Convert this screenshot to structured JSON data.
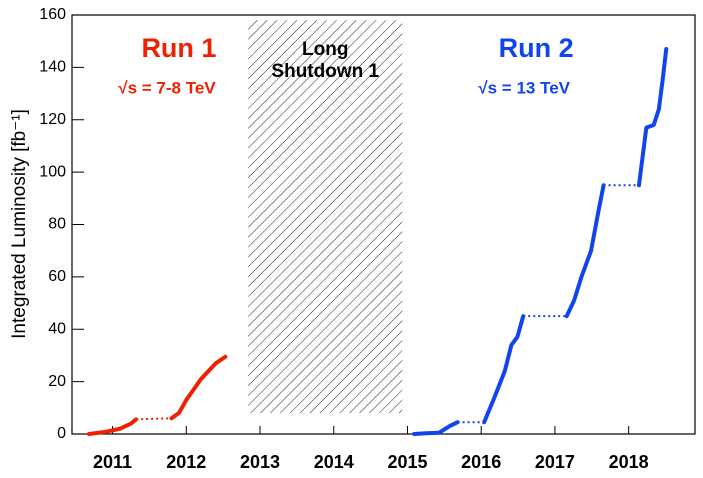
{
  "chart_data": {
    "type": "line",
    "y_label": "Integrated Luminosity [fb⁻¹]",
    "xlim": [
      2010.95,
      2019.4
    ],
    "ylim": [
      0,
      160
    ],
    "yticks": [
      0,
      20,
      40,
      60,
      80,
      100,
      120,
      140,
      160
    ],
    "xticks": [
      {
        "value": 2011.5,
        "label": "2011"
      },
      {
        "value": 2012.5,
        "label": "2012"
      },
      {
        "value": 2013.5,
        "label": "2013"
      },
      {
        "value": 2014.5,
        "label": "2014"
      },
      {
        "value": 2015.5,
        "label": "2015"
      },
      {
        "value": 2016.5,
        "label": "2016"
      },
      {
        "value": 2017.5,
        "label": "2017"
      },
      {
        "value": 2018.5,
        "label": "2018"
      }
    ],
    "series": [
      {
        "name": "Run 1",
        "energy": "√s = 7-8 TeV",
        "color": "#ee2200",
        "x": [
          2011.18,
          2011.4,
          2011.6,
          2011.75,
          2011.82,
          2012.3,
          2012.4,
          2012.5,
          2012.6,
          2012.7,
          2012.8,
          2012.9,
          2013.03
        ],
        "values": [
          0,
          0.8,
          2,
          4,
          5.6,
          6,
          8,
          13,
          17,
          21,
          24,
          27,
          29.5
        ]
      },
      {
        "name": "Run 2",
        "energy": "√s = 13 TeV",
        "color": "#1144ee",
        "x": [
          2015.59,
          2015.75,
          2015.93,
          2016.07,
          2016.18,
          2016.54,
          2016.68,
          2016.82,
          2016.91,
          2016.99,
          2017.07,
          2017.66,
          2017.76,
          2017.86,
          2017.99,
          2018.09,
          2018.16,
          2018.64,
          2018.74,
          2018.84,
          2018.91,
          2018.96,
          2019.01
        ],
        "values": [
          0,
          0.3,
          0.5,
          3,
          4.5,
          4.5,
          14,
          24,
          34,
          37,
          45,
          45,
          51,
          60,
          70,
          85,
          95,
          95,
          117,
          118,
          124,
          135,
          147
        ]
      }
    ],
    "shaded_region": {
      "xlim": [
        2013.34,
        2015.43
      ],
      "ylim": [
        8,
        158
      ],
      "label": [
        "Long",
        "Shutdown 1"
      ]
    }
  }
}
